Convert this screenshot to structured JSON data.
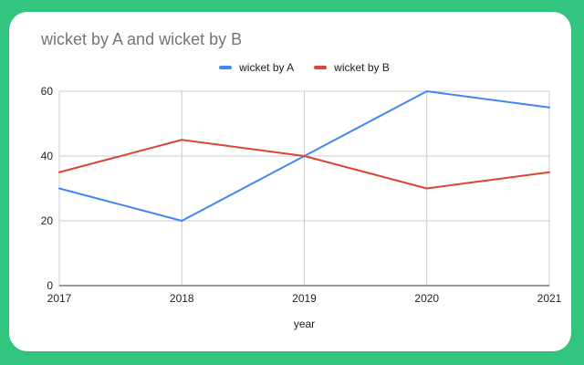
{
  "frame": {
    "background_color": "#31C57F",
    "card_background": "#ffffff"
  },
  "chart_data": {
    "type": "line",
    "title": "wicket by A and wicket by B",
    "title_color": "#757575",
    "x": [
      "2017",
      "2018",
      "2019",
      "2020",
      "2021"
    ],
    "series": [
      {
        "name": "wicket by A",
        "color": "#4285F4",
        "values": [
          30,
          20,
          40,
          60,
          55
        ]
      },
      {
        "name": "wicket by B",
        "color": "#DB4437",
        "values": [
          35,
          45,
          40,
          30,
          35
        ]
      }
    ],
    "xlabel": "year",
    "ylabel": "",
    "ylim": [
      0,
      60
    ],
    "yticks": [
      0,
      20,
      40,
      60
    ],
    "grid": true,
    "grid_color": "#cccccc",
    "axis_color": "#333333",
    "tick_label_color": "#1f1f1f",
    "legend_position": "top-center"
  }
}
